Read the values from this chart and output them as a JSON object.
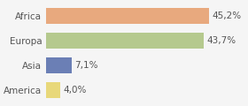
{
  "categories": [
    "America",
    "Asia",
    "Europa",
    "Africa"
  ],
  "values": [
    4.0,
    7.1,
    43.7,
    45.2
  ],
  "labels": [
    "4,0%",
    "7,1%",
    "43,7%",
    "45,2%"
  ],
  "bar_colors": [
    "#e8d87a",
    "#6b7fb5",
    "#b5c98e",
    "#e8a97e"
  ],
  "background_color": "#f5f5f5",
  "xlim": [
    0,
    55
  ],
  "label_fontsize": 7.5,
  "tick_fontsize": 7.5
}
